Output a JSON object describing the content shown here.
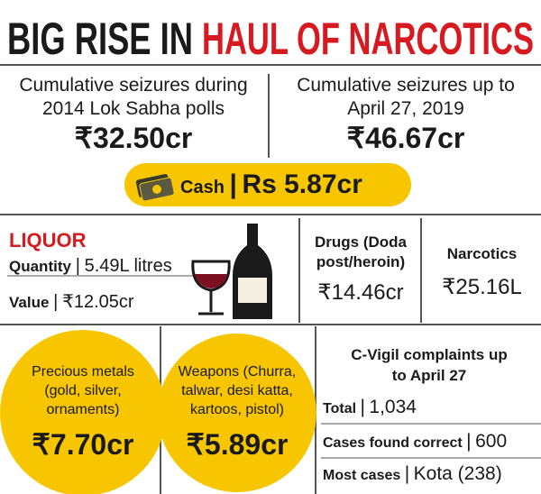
{
  "header": {
    "title_black": "BIG RISE IN",
    "title_red": "HAUL OF NARCOTICS"
  },
  "separator": "|",
  "seizures": [
    {
      "label_lines": [
        "Cumulative seizures during",
        "2014 Lok Sabha polls"
      ],
      "amount": "₹32.50cr"
    },
    {
      "label_lines": [
        "Cumulative seizures up to",
        "April 27, 2019"
      ],
      "amount": "₹46.67cr"
    }
  ],
  "cash": {
    "label": "Cash",
    "amount": "Rs 5.87cr"
  },
  "liquor": {
    "title": "LIQUOR",
    "rows": [
      {
        "label": "Quantity",
        "value": "5.49L litres"
      },
      {
        "label": "Value",
        "value": "₹12.05cr"
      }
    ]
  },
  "drugs": {
    "label_lines": [
      "Drugs (Doda",
      "post/heroin)"
    ],
    "amount": "₹14.46cr"
  },
  "narcotics": {
    "label": "Narcotics",
    "amount": "₹25.16L"
  },
  "precious_metals": {
    "label_lines": [
      "Precious metals",
      "(gold, silver,",
      "ornaments)"
    ],
    "amount": "₹7.70cr"
  },
  "weapons": {
    "label_lines": [
      "Weapons (Churra,",
      "talwar, desi katta,",
      "kartoos, pistol)"
    ],
    "amount": "₹5.89cr"
  },
  "cvigil": {
    "title_lines": [
      "C-Vigil complaints up",
      "to April 27"
    ],
    "rows": [
      {
        "label": "Total",
        "value": "1,034"
      },
      {
        "label": "Cases found correct",
        "value": "600"
      },
      {
        "label": "Most cases",
        "value": "Kota (238)"
      }
    ]
  }
}
